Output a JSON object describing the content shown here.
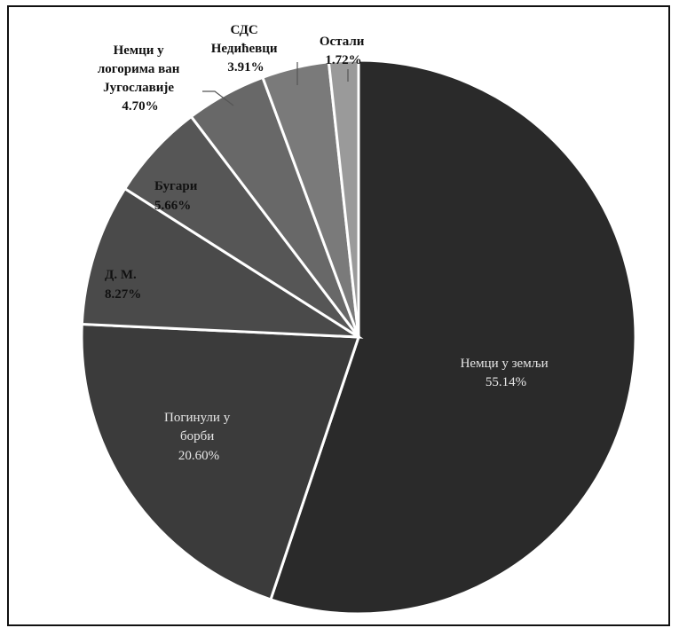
{
  "chart_data": {
    "type": "pie",
    "title": "",
    "slices": [
      {
        "label": "Немци у земљи",
        "value": 55.14,
        "pct_label": "55.14%",
        "color": "#2a2a2a"
      },
      {
        "label": "Погинули у борби",
        "value": 20.6,
        "pct_label": "20.60%",
        "color": "#3b3b3b"
      },
      {
        "label": "Д. М.",
        "value": 8.27,
        "pct_label": "8.27%",
        "color": "#4a4a4a"
      },
      {
        "label": "Бугари",
        "value": 5.66,
        "pct_label": "5.66%",
        "color": "#565656"
      },
      {
        "label": "Немци у логорима ван Југославије",
        "value": 4.7,
        "pct_label": "4.70%",
        "color": "#686868"
      },
      {
        "label": "СДС Недићевци",
        "value": 3.91,
        "pct_label": "3.91%",
        "color": "#7a7a7a"
      },
      {
        "label": "Остали",
        "value": 1.72,
        "pct_label": "1.72%",
        "color": "#9a9a9a"
      }
    ]
  },
  "labels": {
    "nemci_u_zemlji": [
      "Немци у земљи",
      "55.14%"
    ],
    "poginuli": [
      "Погинули у",
      "борби",
      "20.60%"
    ],
    "dm": [
      "Д. М.",
      "8.27%"
    ],
    "bugari": [
      "Бугари",
      "5.66%"
    ],
    "logori": [
      "Немци у",
      "логорима ван",
      "Југославије",
      "4.70%"
    ],
    "sds": [
      "СДС",
      "Недићевци",
      "3.91%"
    ],
    "ostali": [
      "Остали",
      "1.72%"
    ]
  },
  "colors": {
    "label_light": "#e6e6e6",
    "label_dark": "#111111"
  }
}
